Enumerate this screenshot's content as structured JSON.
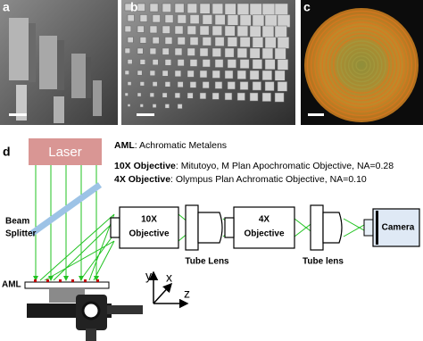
{
  "panels": {
    "labels": [
      "a",
      "b",
      "c",
      "d"
    ]
  },
  "laser": "Laser",
  "legend": [
    {
      "term": "AML",
      "text": ": Achromatic Metalens"
    },
    {
      "term": "10X Objective",
      "text": ": Mitutoyo,  M Plan Apochromatic Objective, NA=0.28"
    },
    {
      "term": "4X Objective",
      "text": ": Olympus Plan Achromatic Objective, NA=0.10"
    }
  ],
  "components": {
    "beam_splitter": [
      "Beam",
      "Splitter"
    ],
    "objective_10x": [
      "10X",
      "Objective"
    ],
    "tube_lens_1": "Tube Lens",
    "objective_4x": [
      "4X",
      "Objective"
    ],
    "tube_lens_2": "Tube lens",
    "camera": "Camera",
    "aml": "AML"
  },
  "axes": [
    "y",
    "x",
    "z"
  ]
}
